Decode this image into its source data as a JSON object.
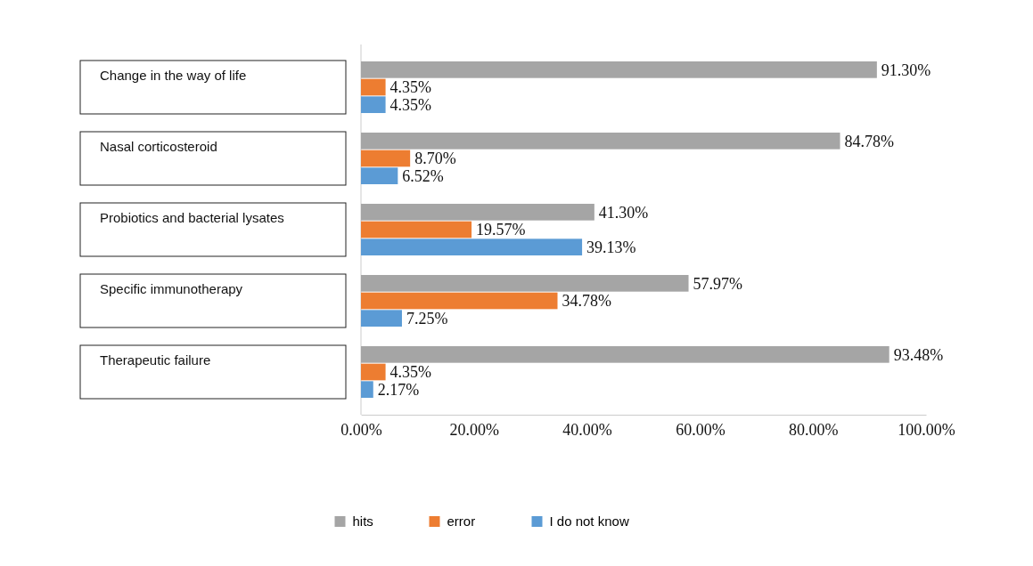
{
  "chart_data": {
    "type": "bar",
    "orientation": "horizontal",
    "categories": [
      "Change in the way of life",
      "Nasal corticosteroid",
      "Probiotics and bacterial lysates",
      "Specific immunotherapy",
      "Therapeutic failure"
    ],
    "series": [
      {
        "name": "hits",
        "color": "#a5a5a5",
        "values": [
          91.3,
          84.78,
          41.3,
          57.97,
          93.48
        ],
        "value_labels": [
          "91.30%",
          "84.78%",
          "41.30%",
          "57.97%",
          "93.48%"
        ]
      },
      {
        "name": "error",
        "color": "#ed7d31",
        "values": [
          4.35,
          8.7,
          19.57,
          34.78,
          4.35
        ],
        "value_labels": [
          "4.35%",
          "8.70%",
          "19.57%",
          "34.78%",
          "4.35%"
        ]
      },
      {
        "name": "I do not know",
        "color": "#5b9bd5",
        "values": [
          4.35,
          6.52,
          39.13,
          7.25,
          2.17
        ],
        "value_labels": [
          "4.35%",
          "6.52%",
          "39.13%",
          "7.25%",
          "2.17%"
        ]
      }
    ],
    "xlim": [
      0,
      100
    ],
    "xticks": [
      {
        "value": 0,
        "label": "0.00%"
      },
      {
        "value": 20,
        "label": "20.00%"
      },
      {
        "value": 40,
        "label": "40.00%"
      },
      {
        "value": 60,
        "label": "60.00%"
      },
      {
        "value": 80,
        "label": "80.00%"
      },
      {
        "value": 100,
        "label": "100.00%"
      }
    ],
    "legend": "bottom"
  }
}
